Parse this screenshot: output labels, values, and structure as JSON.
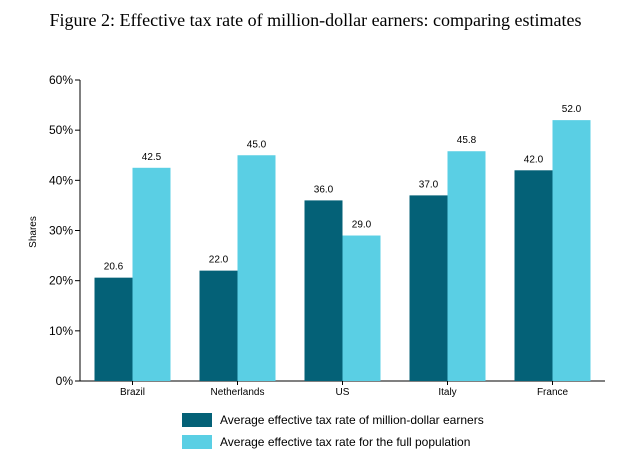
{
  "title": "Figure 2: Effective tax rate of million-dollar earners: comparing estimates",
  "chart_data": {
    "type": "bar",
    "categories": [
      "Brazil",
      "Netherlands",
      "US",
      "Italy",
      "France"
    ],
    "series": [
      {
        "name": "Average effective tax rate of million-dollar earners",
        "values": [
          20.6,
          22.0,
          36.0,
          37.0,
          42.0
        ],
        "labels": [
          "20.6",
          "22.0",
          "36.0",
          "37.0",
          "42.0"
        ],
        "color": "#046177"
      },
      {
        "name": "Average effective tax rate for the full population",
        "values": [
          42.5,
          45.0,
          29.0,
          45.8,
          52.0
        ],
        "labels": [
          "42.5",
          "45.0",
          "29.0",
          "45.8",
          "52.0"
        ],
        "color": "#5acfe4"
      }
    ],
    "ylabel": "Shares",
    "ylim": [
      0,
      60
    ],
    "yticks": [
      "0%",
      "10%",
      "20%",
      "30%",
      "40%",
      "50%",
      "60%"
    ],
    "grid": false,
    "legend": "bottom"
  }
}
